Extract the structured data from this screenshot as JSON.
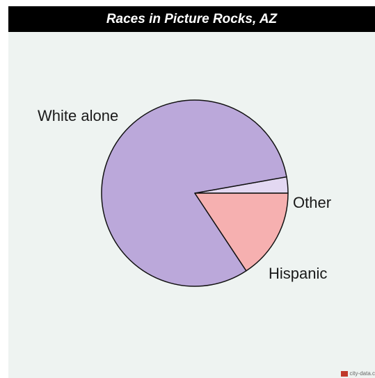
{
  "chart_data": {
    "type": "pie",
    "title": "Races in Picture Rocks, AZ",
    "slices": [
      {
        "label": "White alone",
        "value": 81.5,
        "color": "#bba8da"
      },
      {
        "label": "Hispanic",
        "value": 15.7,
        "color": "#f6b0b0"
      },
      {
        "label": "Other",
        "value": 2.8,
        "color": "#e3d8f2"
      }
    ]
  },
  "watermark": {
    "text": "city-data.c"
  }
}
